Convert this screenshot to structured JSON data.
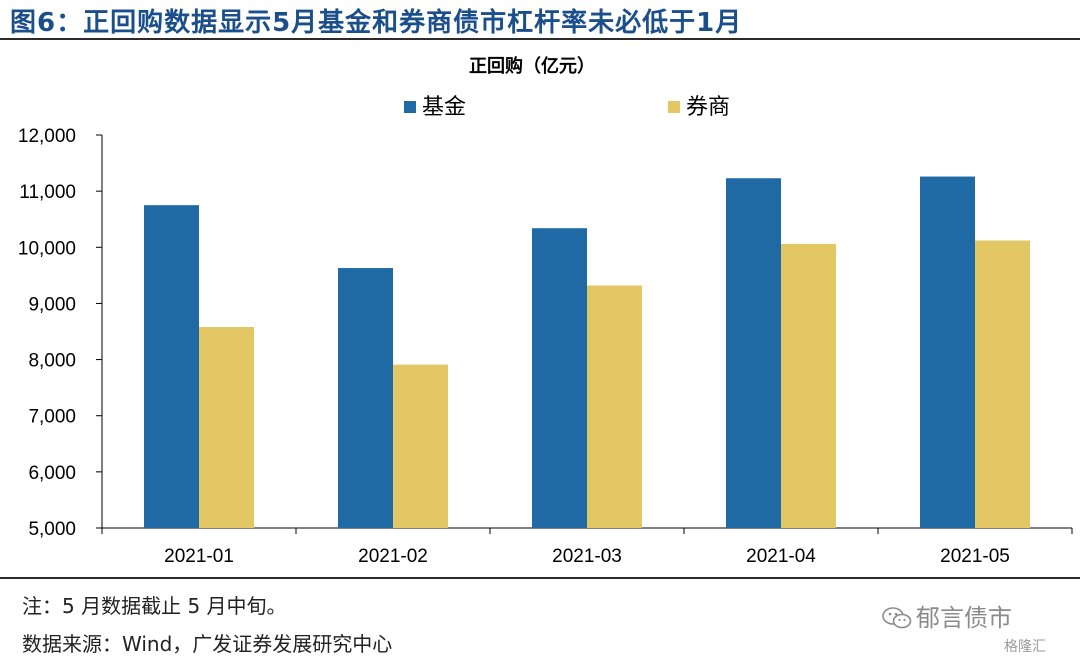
{
  "header": {
    "title": "图6：正回购数据显示5月基金和券商债市杠杆率未必低于1月"
  },
  "chart_data": {
    "type": "bar",
    "title": "正回购（亿元）",
    "xlabel": "",
    "ylabel": "",
    "ylim": [
      5000,
      12000
    ],
    "yticks": [
      "5,000",
      "6,000",
      "7,000",
      "8,000",
      "9,000",
      "10,000",
      "11,000",
      "12,000"
    ],
    "ytick_values": [
      5000,
      6000,
      7000,
      8000,
      9000,
      10000,
      11000,
      12000
    ],
    "categories": [
      "2021-01",
      "2021-02",
      "2021-03",
      "2021-04",
      "2021-05"
    ],
    "series": [
      {
        "name": "基金",
        "color": "#1f6aa5",
        "values": [
          10750,
          9630,
          10340,
          11230,
          11260
        ]
      },
      {
        "name": "券商",
        "color": "#e3c765",
        "values": [
          8580,
          7910,
          9320,
          10060,
          10120
        ]
      }
    ],
    "grid": false,
    "legend_position": "top-center"
  },
  "footer": {
    "note": "注：5 月数据截止 5 月中旬。",
    "source": "数据来源：Wind，广发证券发展研究中心"
  },
  "watermark": {
    "text": "郁言债市",
    "badge": "格隆汇",
    "icon": "wechat-icon"
  }
}
